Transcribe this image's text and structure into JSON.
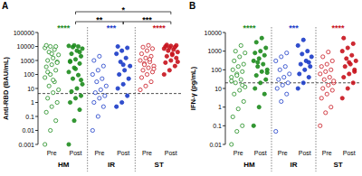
{
  "chart_data": [
    {
      "type": "strip",
      "title": "A",
      "y_label": "Anti-RBD (BAU/mL)",
      "log": "y",
      "categories": [
        "Pre",
        "Post"
      ],
      "ylim": [
        0.001,
        100000
      ],
      "yticks": [
        0.001,
        0.01,
        0.1,
        1,
        10,
        100,
        1000,
        10000,
        100000
      ],
      "cutoff": 4.33,
      "series": [
        {
          "name": "HM",
          "color": "#1e8c1e",
          "significance": "****",
          "values": [
            [
              0.001,
              0.01,
              0.05,
              0.2,
              0.5,
              1,
              2,
              5,
              8,
              15,
              30,
              60,
              100,
              200,
              350,
              500,
              800,
              1000,
              1500,
              2500,
              4000,
              6000,
              8000,
              10000,
              10000,
              12000,
              3000,
              700,
              150,
              40
            ],
            [
              0.001,
              0.05,
              0.3,
              1,
              2,
              3,
              6,
              10,
              20,
              50,
              90,
              150,
              300,
              600,
              900,
              1200,
              2000,
              3000,
              5000,
              7000,
              9000,
              10000,
              11000,
              12000,
              4000,
              800,
              250,
              40
            ]
          ]
        },
        {
          "name": "IR",
          "color": "#1c3cc8",
          "significance": "***",
          "values": [
            [
              0.01,
              0.1,
              0.5,
              1,
              2,
              3,
              5,
              8,
              15,
              30,
              50,
              100,
              200,
              400,
              1000,
              2000
            ],
            [
              0.5,
              1,
              3,
              10,
              20,
              50,
              100,
              200,
              400,
              800,
              1500,
              3000,
              5000,
              8000,
              10000,
              500
            ]
          ]
        },
        {
          "name": "ST",
          "color": "#c8141e",
          "significance": "****",
          "values": [
            [
              8,
              15,
              30,
              60,
              100,
              150,
              200,
              300,
              400,
              600,
              800,
              1000,
              1500,
              2000,
              3000,
              5000,
              7000,
              9000,
              12000,
              250,
              500,
              1200
            ],
            [
              100,
              200,
              400,
              700,
              1000,
              1500,
              2000,
              3000,
              4000,
              5000,
              6000,
              7000,
              8000,
              9000,
              10000,
              11000,
              12000,
              13000,
              2500,
              800
            ]
          ]
        }
      ],
      "comparisons": [
        {
          "between": [
            0,
            2
          ],
          "label": "*"
        },
        {
          "between": [
            0,
            1
          ],
          "label": "**"
        },
        {
          "between": [
            1,
            2
          ],
          "label": "***"
        }
      ]
    },
    {
      "type": "strip",
      "title": "B",
      "y_label": "IFN-γ (pg/mL)",
      "log": "y",
      "categories": [
        "Pre",
        "Post"
      ],
      "ylim": [
        0.01,
        10000
      ],
      "yticks": [
        0.01,
        0.1,
        1,
        10,
        100,
        1000,
        10000
      ],
      "cutoff": 20,
      "series": [
        {
          "name": "HM",
          "color": "#1e8c1e",
          "significance": "****",
          "values": [
            [
              0.01,
              0.05,
              0.1,
              0.3,
              0.8,
              2,
              5,
              8,
              12,
              20,
              30,
              40,
              60,
              80,
              100,
              150,
              200,
              300,
              500,
              800,
              1000,
              2000,
              25,
              50,
              15
            ],
            [
              0.1,
              1,
              5,
              10,
              20,
              30,
              50,
              80,
              100,
              150,
              200,
              300,
              400,
              600,
              800,
              1000,
              1500,
              3000,
              5000,
              70,
              250
            ]
          ]
        },
        {
          "name": "IR",
          "color": "#1c3cc8",
          "significance": "***",
          "values": [
            [
              0.05,
              2,
              5,
              10,
              15,
              20,
              30,
              40,
              60,
              100,
              150,
              300,
              500,
              800
            ],
            [
              10,
              20,
              40,
              60,
              100,
              150,
              200,
              300,
              500,
              700,
              1000,
              2000,
              4000,
              250
            ]
          ]
        },
        {
          "name": "ST",
          "color": "#c8141e",
          "significance": "****",
          "values": [
            [
              0.1,
              0.5,
              1,
              3,
              5,
              8,
              10,
              15,
              20,
              30,
              40,
              60,
              80,
              100,
              150,
              200,
              300,
              500,
              900,
              25
            ],
            [
              3,
              10,
              20,
              40,
              60,
              100,
              150,
              200,
              300,
              400,
              600,
              1000,
              1500,
              2500,
              5000,
              250,
              80
            ]
          ]
        }
      ]
    }
  ]
}
